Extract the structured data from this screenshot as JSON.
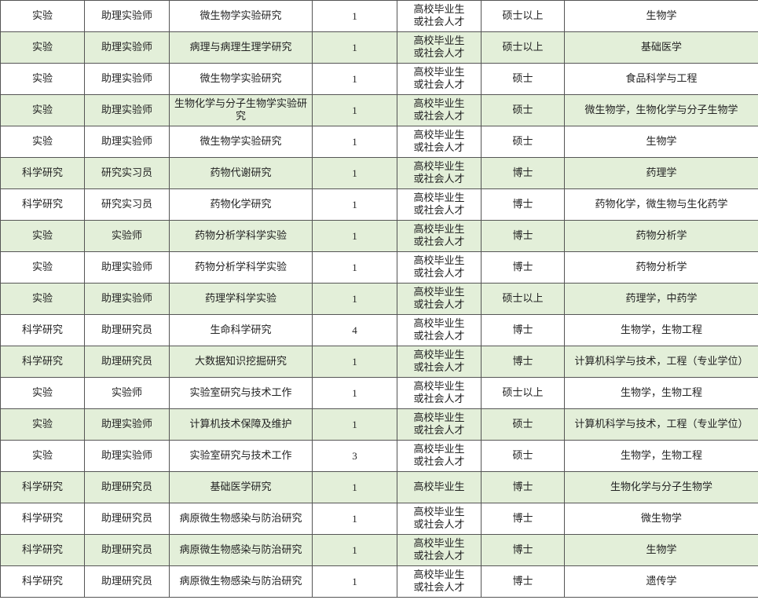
{
  "table": {
    "rows": [
      [
        "实验",
        "助理实验师",
        "微生物学实验研究",
        1,
        "高校毕业生\n或社会人才",
        "硕士以上",
        "生物学"
      ],
      [
        "实验",
        "助理实验师",
        "病理与病理生理学研究",
        1,
        "高校毕业生\n或社会人才",
        "硕士以上",
        "基础医学"
      ],
      [
        "实验",
        "助理实验师",
        "微生物学实验研究",
        1,
        "高校毕业生\n或社会人才",
        "硕士",
        "食品科学与工程"
      ],
      [
        "实验",
        "助理实验师",
        "生物化学与分子生物学实验研究",
        1,
        "高校毕业生\n或社会人才",
        "硕士",
        "微生物学，生物化学与分子生物学"
      ],
      [
        "实验",
        "助理实验师",
        "微生物学实验研究",
        1,
        "高校毕业生\n或社会人才",
        "硕士",
        "生物学"
      ],
      [
        "科学研究",
        "研究实习员",
        "药物代谢研究",
        1,
        "高校毕业生\n或社会人才",
        "博士",
        "药理学"
      ],
      [
        "科学研究",
        "研究实习员",
        "药物化学研究",
        1,
        "高校毕业生\n或社会人才",
        "博士",
        "药物化学，微生物与生化药学"
      ],
      [
        "实验",
        "实验师",
        "药物分析学科学实验",
        1,
        "高校毕业生\n或社会人才",
        "博士",
        "药物分析学"
      ],
      [
        "实验",
        "助理实验师",
        "药物分析学科学实验",
        1,
        "高校毕业生\n或社会人才",
        "博士",
        "药物分析学"
      ],
      [
        "实验",
        "助理实验师",
        "药理学科学实验",
        1,
        "高校毕业生\n或社会人才",
        "硕士以上",
        "药理学，中药学"
      ],
      [
        "科学研究",
        "助理研究员",
        "生命科学研究",
        4,
        "高校毕业生\n或社会人才",
        "博士",
        "生物学，生物工程"
      ],
      [
        "科学研究",
        "助理研究员",
        "大数据知识挖掘研究",
        1,
        "高校毕业生\n或社会人才",
        "博士",
        "计算机科学与技术，工程（专业学位）"
      ],
      [
        "实验",
        "实验师",
        "实验室研究与技术工作",
        1,
        "高校毕业生\n或社会人才",
        "硕士以上",
        "生物学，生物工程"
      ],
      [
        "实验",
        "助理实验师",
        "计算机技术保障及维护",
        1,
        "高校毕业生\n或社会人才",
        "硕士",
        "计算机科学与技术，工程（专业学位）"
      ],
      [
        "实验",
        "助理实验师",
        "实验室研究与技术工作",
        3,
        "高校毕业生\n或社会人才",
        "硕士",
        "生物学，生物工程"
      ],
      [
        "科学研究",
        "助理研究员",
        "基础医学研究",
        1,
        "高校毕业生",
        "博士",
        "生物化学与分子生物学"
      ],
      [
        "科学研究",
        "助理研究员",
        "病原微生物感染与防治研究",
        1,
        "高校毕业生\n或社会人才",
        "博士",
        "微生物学"
      ],
      [
        "科学研究",
        "助理研究员",
        "病原微生物感染与防治研究",
        1,
        "高校毕业生\n或社会人才",
        "博士",
        "生物学"
      ],
      [
        "科学研究",
        "助理研究员",
        "病原微生物感染与防治研究",
        1,
        "高校毕业生\n或社会人才",
        "博士",
        "遗传学"
      ]
    ]
  }
}
